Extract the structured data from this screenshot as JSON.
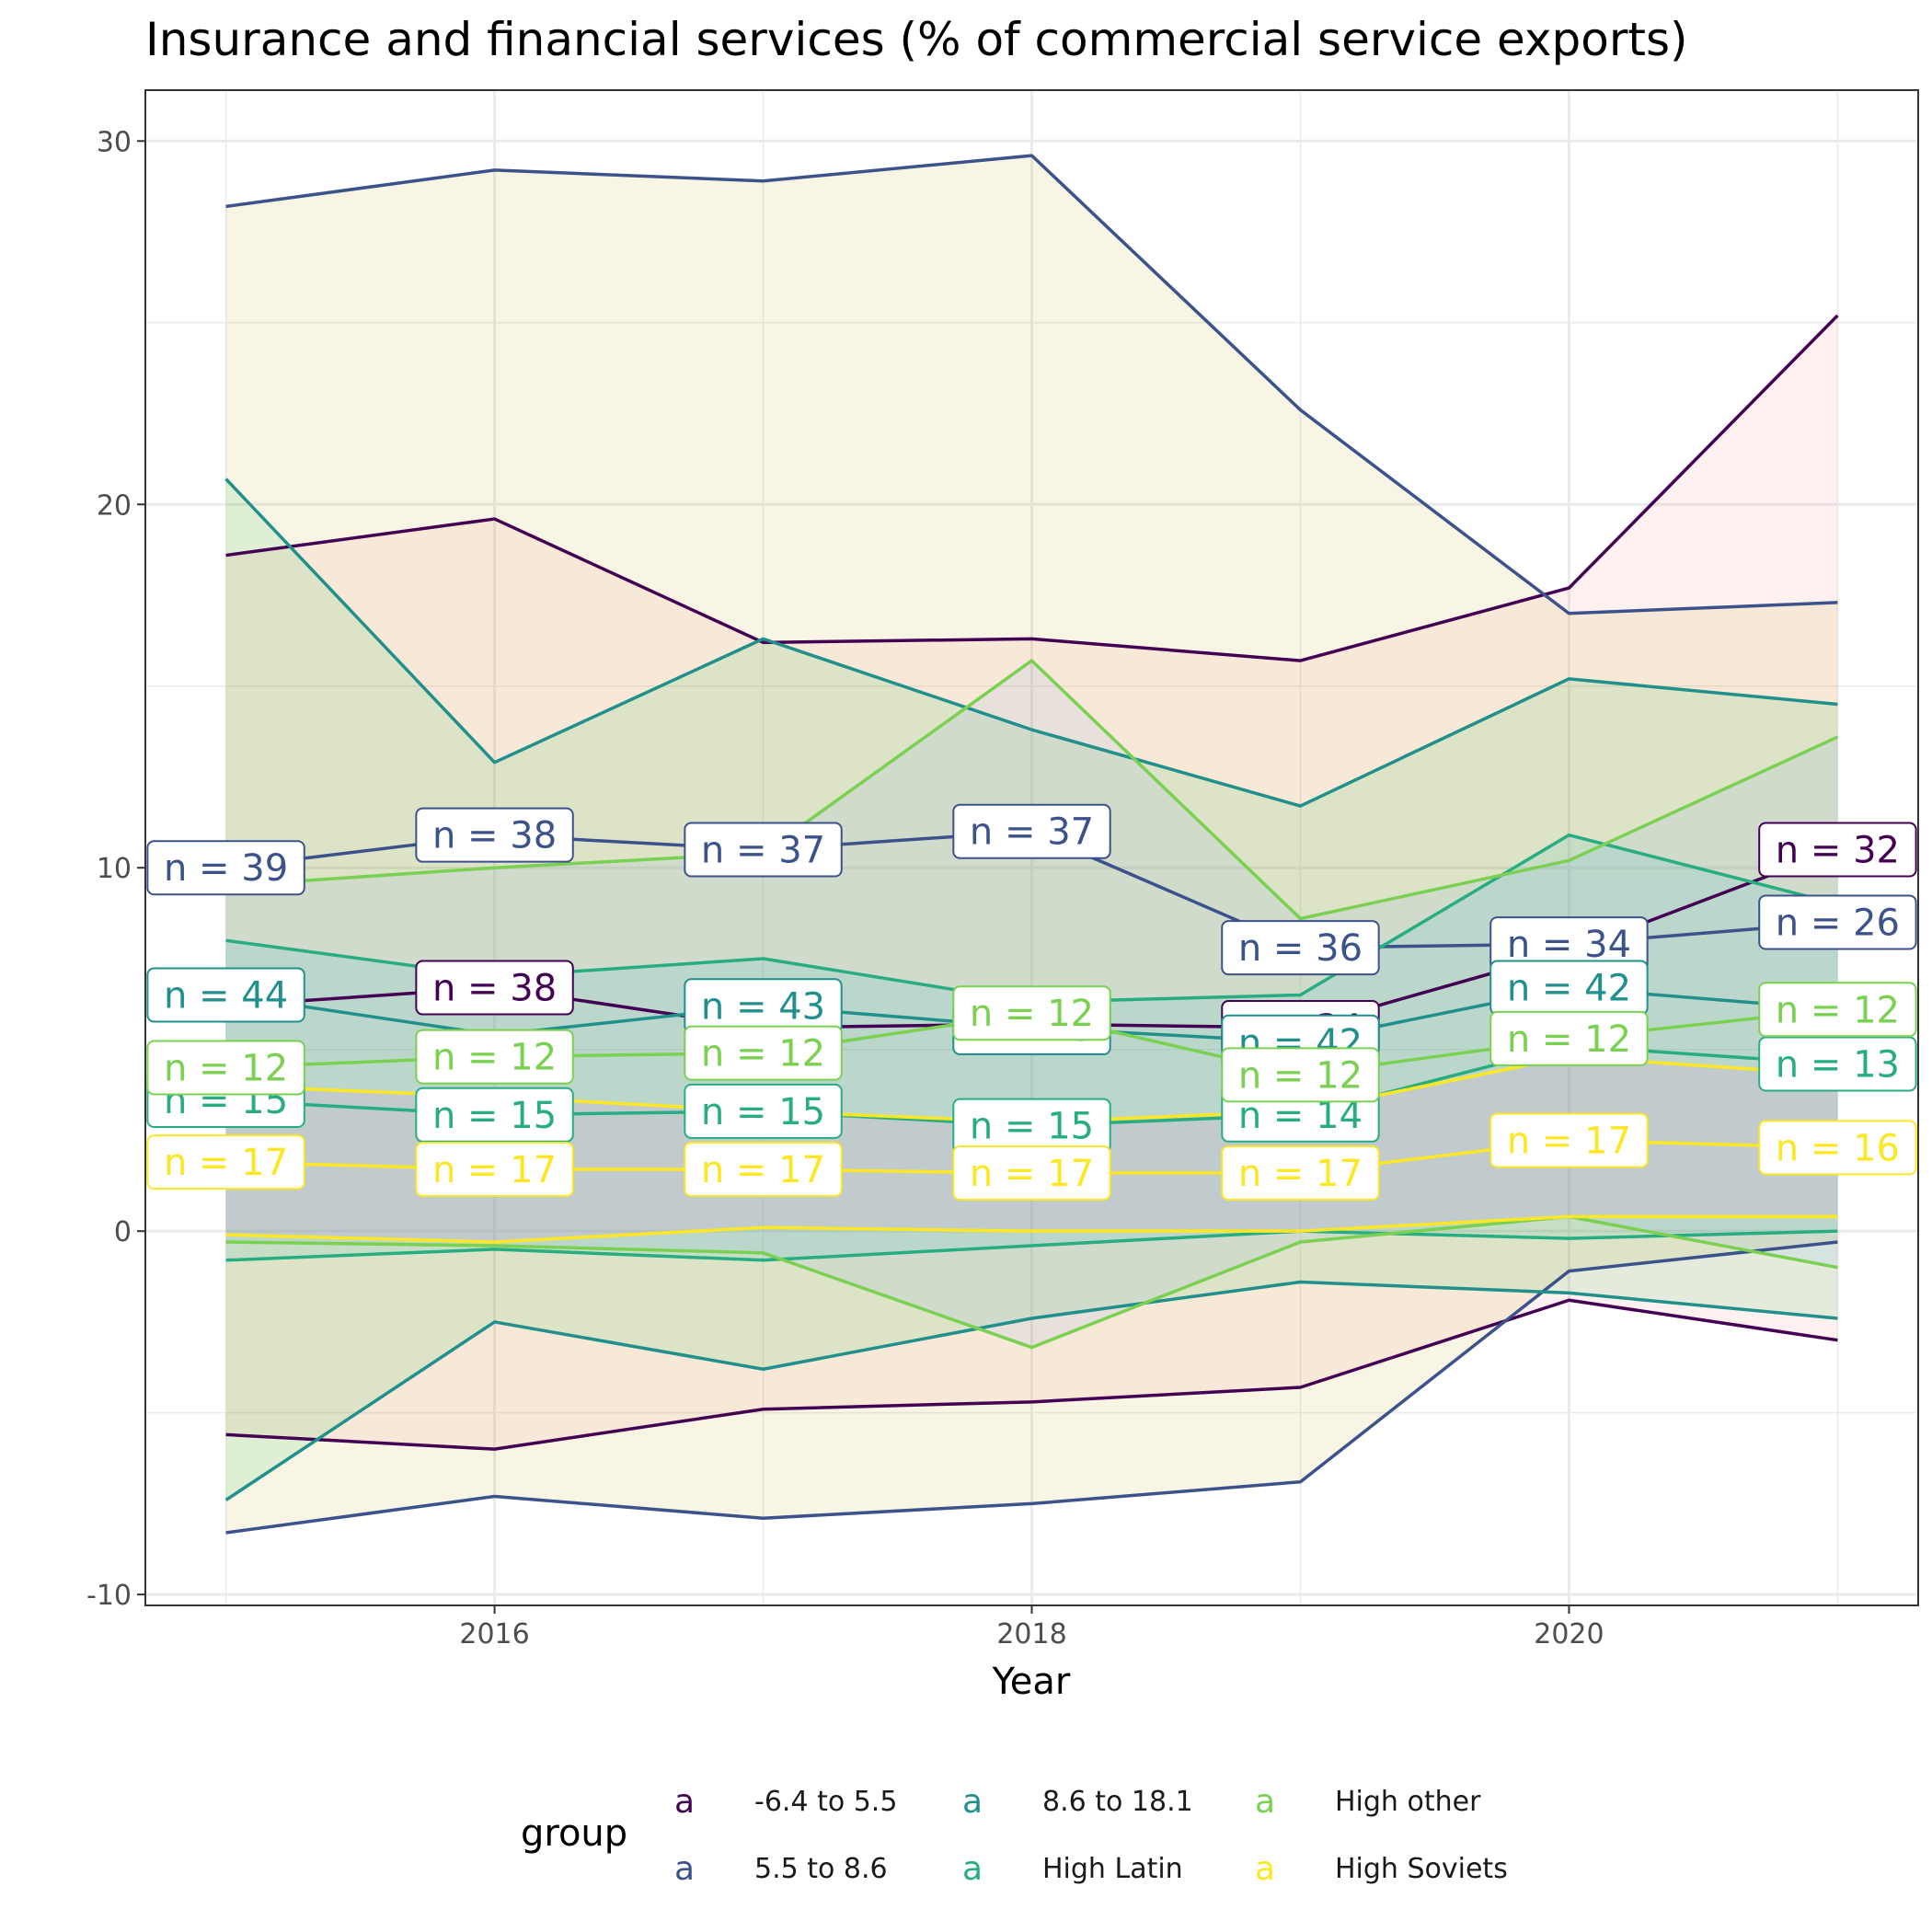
{
  "chart_data": {
    "type": "line",
    "title": "Insurance and financial services (% of commercial service exports)",
    "xlabel": "Year",
    "ylabel": "",
    "xlim": [
      2014.7,
      2021.3
    ],
    "ylim": [
      -10.3,
      31.4
    ],
    "x_ticks": [
      2016,
      2018,
      2020
    ],
    "y_ticks": [
      -10,
      0,
      10,
      20,
      30
    ],
    "grid": true,
    "legend": {
      "title": "group",
      "position": "bottom",
      "key_glyph": "a"
    },
    "x": [
      2015,
      2016,
      2017,
      2018,
      2019,
      2020,
      2021
    ],
    "series": [
      {
        "name": "-6.4 to 5.5",
        "color": "#440154",
        "mean": [
          6.2,
          6.7,
          5.6,
          5.7,
          5.6,
          7.7,
          10.5
        ],
        "upper": [
          18.6,
          19.6,
          16.2,
          16.3,
          15.7,
          17.7,
          25.2
        ],
        "lower": [
          -5.6,
          -6.0,
          -4.9,
          -4.7,
          -4.3,
          -1.9,
          -3.0
        ],
        "n": [
          null,
          38,
          null,
          null,
          34,
          null,
          32
        ]
      },
      {
        "name": "5.5 to 8.6",
        "color": "#3B528B",
        "mean": [
          10.0,
          10.9,
          10.5,
          11.0,
          7.8,
          7.9,
          8.5
        ],
        "upper": [
          28.2,
          29.2,
          28.9,
          29.6,
          22.6,
          17.0,
          17.3
        ],
        "lower": [
          -8.3,
          -7.3,
          -7.9,
          -7.5,
          -6.9,
          -1.1,
          -0.3
        ],
        "n": [
          39,
          38,
          37,
          37,
          36,
          34,
          26
        ]
      },
      {
        "name": "8.6 to 18.1",
        "color": "#21908C",
        "mean": [
          6.5,
          5.4,
          6.2,
          5.6,
          5.2,
          6.7,
          6.1
        ],
        "upper": [
          20.7,
          12.9,
          16.3,
          13.8,
          11.7,
          15.2,
          14.5
        ],
        "lower": [
          -7.4,
          -2.5,
          -3.8,
          -2.4,
          -1.4,
          -1.7,
          -2.4
        ],
        "n": [
          44,
          null,
          43,
          43,
          42,
          42,
          null
        ]
      },
      {
        "name": "High Latin",
        "color": "#27AD81",
        "mean": [
          3.6,
          3.2,
          3.3,
          2.9,
          3.2,
          5.1,
          4.6
        ],
        "upper": [
          8.0,
          7.0,
          7.5,
          6.3,
          6.5,
          10.9,
          9.0
        ],
        "lower": [
          -0.8,
          -0.5,
          -0.8,
          -0.4,
          0.0,
          -0.2,
          0.0
        ],
        "n": [
          15,
          15,
          15,
          15,
          14,
          null,
          13
        ]
      },
      {
        "name": "High other",
        "color": "#7AD151",
        "mean": [
          4.5,
          4.8,
          4.9,
          6.0,
          4.3,
          5.3,
          6.1
        ],
        "upper": [
          9.5,
          10.0,
          10.4,
          15.7,
          8.6,
          10.2,
          13.6
        ],
        "lower": [
          -0.3,
          -0.4,
          -0.6,
          -3.2,
          -0.3,
          0.4,
          -1.0
        ],
        "n": [
          12,
          12,
          12,
          12,
          12,
          12,
          12
        ]
      },
      {
        "name": "High Soviets",
        "color": "#FDE725",
        "mean": [
          1.9,
          1.7,
          1.7,
          1.6,
          1.6,
          2.5,
          2.3
        ],
        "upper": [
          4.0,
          3.7,
          3.3,
          3.0,
          3.3,
          4.8,
          4.3
        ],
        "lower": [
          -0.1,
          -0.3,
          0.1,
          0.0,
          0.0,
          0.4,
          0.4
        ],
        "n": [
          17,
          17,
          17,
          17,
          17,
          17,
          16
        ]
      }
    ]
  }
}
